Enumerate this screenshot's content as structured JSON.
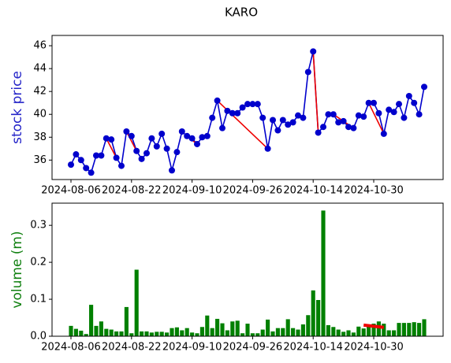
{
  "chart_data": [
    {
      "type": "line",
      "title": "KARO",
      "ylabel": "stock price",
      "label_color": "#2424c8",
      "color": "#0000cc",
      "categories": [
        "2024-08-06",
        null,
        null,
        null,
        null,
        null,
        null,
        null,
        null,
        null,
        null,
        null,
        "2024-08-22",
        null,
        null,
        null,
        null,
        null,
        null,
        null,
        null,
        null,
        null,
        null,
        "2024-09-10",
        null,
        null,
        null,
        null,
        null,
        null,
        null,
        null,
        null,
        null,
        null,
        "2024-09-26",
        null,
        null,
        null,
        null,
        null,
        null,
        null,
        null,
        null,
        null,
        null,
        "2024-10-14",
        null,
        null,
        null,
        null,
        null,
        null,
        null,
        null,
        null,
        null,
        null,
        "2024-10-30",
        null,
        null,
        null,
        null,
        null,
        null,
        null,
        null,
        null,
        null
      ],
      "values": [
        35.6,
        36.5,
        36.0,
        35.3,
        34.9,
        36.4,
        36.4,
        37.9,
        37.8,
        36.2,
        35.5,
        38.5,
        38.1,
        36.8,
        36.1,
        36.6,
        37.9,
        37.2,
        38.3,
        37.0,
        35.1,
        36.7,
        38.5,
        38.1,
        37.9,
        37.4,
        38.0,
        38.1,
        39.7,
        41.2,
        38.8,
        40.3,
        40.1,
        40.1,
        40.6,
        40.9,
        40.9,
        40.9,
        39.7,
        37.0,
        39.5,
        38.6,
        39.5,
        39.1,
        39.3,
        39.9,
        39.7,
        43.7,
        45.5,
        38.4,
        38.9,
        40.0,
        40.0,
        39.3,
        39.4,
        38.9,
        38.8,
        39.9,
        39.8,
        41.0,
        41.0,
        40.1,
        38.3,
        40.4,
        40.2,
        40.9,
        39.7,
        41.6,
        41.0,
        40.0,
        42.4
      ],
      "highlight_segments": [
        [
          7,
          9
        ],
        [
          11,
          13
        ],
        [
          23,
          25
        ],
        [
          29,
          39
        ],
        [
          48,
          49
        ],
        [
          52,
          56
        ],
        [
          59,
          62
        ]
      ],
      "highlight_color": "#ee0000",
      "ylim": [
        34.3,
        46.9
      ],
      "yticks": [
        36,
        38,
        40,
        42,
        44,
        46
      ]
    },
    {
      "type": "bar",
      "ylabel": "volume (m)",
      "label_color": "#108010",
      "color": "#008000",
      "categories": [
        "2024-08-06",
        null,
        null,
        null,
        null,
        null,
        null,
        null,
        null,
        null,
        null,
        null,
        "2024-08-22",
        null,
        null,
        null,
        null,
        null,
        null,
        null,
        null,
        null,
        null,
        null,
        "2024-09-10",
        null,
        null,
        null,
        null,
        null,
        null,
        null,
        null,
        null,
        null,
        null,
        "2024-09-26",
        null,
        null,
        null,
        null,
        null,
        null,
        null,
        null,
        null,
        null,
        null,
        "2024-10-14",
        null,
        null,
        null,
        null,
        null,
        null,
        null,
        null,
        null,
        null,
        null,
        "2024-10-30",
        null,
        null,
        null,
        null,
        null,
        null,
        null,
        null,
        null,
        null
      ],
      "values": [
        0.028,
        0.02,
        0.015,
        0.006,
        0.085,
        0.028,
        0.04,
        0.02,
        0.018,
        0.013,
        0.013,
        0.079,
        0.008,
        0.18,
        0.013,
        0.013,
        0.01,
        0.012,
        0.012,
        0.01,
        0.022,
        0.024,
        0.016,
        0.022,
        0.01,
        0.008,
        0.025,
        0.056,
        0.022,
        0.047,
        0.035,
        0.016,
        0.04,
        0.042,
        0.008,
        0.034,
        0.008,
        0.008,
        0.018,
        0.045,
        0.013,
        0.022,
        0.022,
        0.046,
        0.022,
        0.018,
        0.032,
        0.057,
        0.124,
        0.098,
        0.34,
        0.03,
        0.025,
        0.018,
        0.012,
        0.016,
        0.01,
        0.026,
        0.021,
        0.032,
        0.034,
        0.04,
        0.034,
        0.016,
        0.016,
        0.036,
        0.036,
        0.036,
        0.038,
        0.036,
        0.046
      ],
      "highlight_line": {
        "from": 58,
        "to": 62,
        "values": [
          0.03,
          0.024
        ]
      },
      "highlight_color": "#ee0000",
      "ylim": [
        0,
        0.36
      ],
      "yticks": [
        {
          "value": 0,
          "label": "0.0"
        },
        0.1,
        0.2,
        0.3
      ]
    }
  ]
}
